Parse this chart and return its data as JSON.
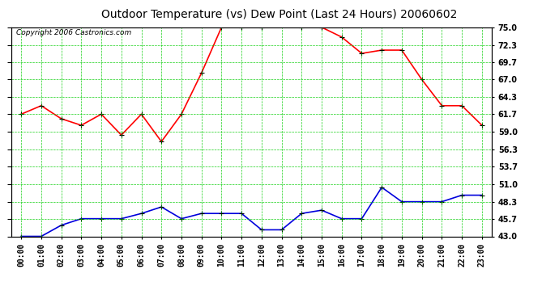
{
  "title": "Outdoor Temperature (vs) Dew Point (Last 24 Hours) 20060602",
  "copyright": "Copyright 2006 Castronics.com",
  "hours": [
    "00:00",
    "01:00",
    "02:00",
    "03:00",
    "04:00",
    "05:00",
    "06:00",
    "07:00",
    "08:00",
    "09:00",
    "10:00",
    "11:00",
    "12:00",
    "13:00",
    "14:00",
    "15:00",
    "16:00",
    "17:00",
    "18:00",
    "19:00",
    "20:00",
    "21:00",
    "22:00",
    "23:00"
  ],
  "temp": [
    61.7,
    63.0,
    61.0,
    60.0,
    61.7,
    58.5,
    61.7,
    57.5,
    61.7,
    68.0,
    75.0,
    75.0,
    75.0,
    76.0,
    75.0,
    75.0,
    73.5,
    71.0,
    71.5,
    71.5,
    67.0,
    63.0,
    63.0,
    60.0
  ],
  "dew": [
    43.0,
    43.0,
    44.7,
    45.7,
    45.7,
    45.7,
    46.5,
    47.5,
    45.7,
    46.5,
    46.5,
    46.5,
    44.0,
    44.0,
    46.5,
    47.0,
    45.7,
    45.7,
    50.5,
    48.3,
    48.3,
    48.3,
    49.3,
    49.3
  ],
  "ylim": [
    43.0,
    75.0
  ],
  "yticks": [
    43.0,
    45.7,
    48.3,
    51.0,
    53.7,
    56.3,
    59.0,
    61.7,
    64.3,
    67.0,
    69.7,
    72.3,
    75.0
  ],
  "temp_color": "#ff0000",
  "dew_color": "#0000dd",
  "bg_color": "#ffffff",
  "plot_bg_color": "#ffffff",
  "grid_color": "#00cc00",
  "title_fontsize": 10,
  "copyright_fontsize": 6.5,
  "tick_fontsize": 7,
  "line_width": 1.2,
  "marker": "+",
  "marker_size": 5,
  "marker_color": "black"
}
